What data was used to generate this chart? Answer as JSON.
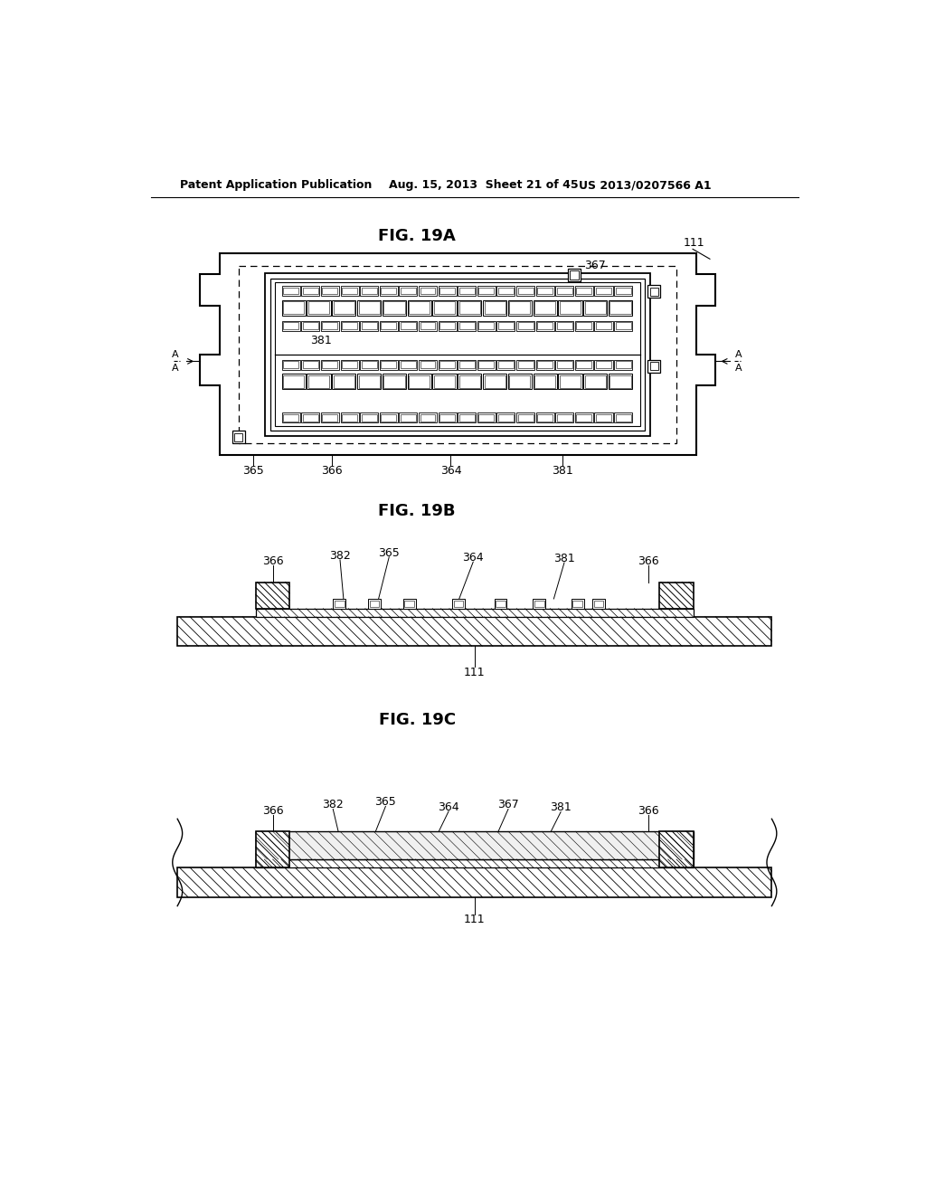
{
  "bg_color": "#ffffff",
  "header_left": "Patent Application Publication",
  "header_mid": "Aug. 15, 2013  Sheet 21 of 45",
  "header_right": "US 2013/0207566 A1",
  "fig_labels": [
    "FIG. 19A",
    "FIG. 19B",
    "FIG. 19C"
  ]
}
